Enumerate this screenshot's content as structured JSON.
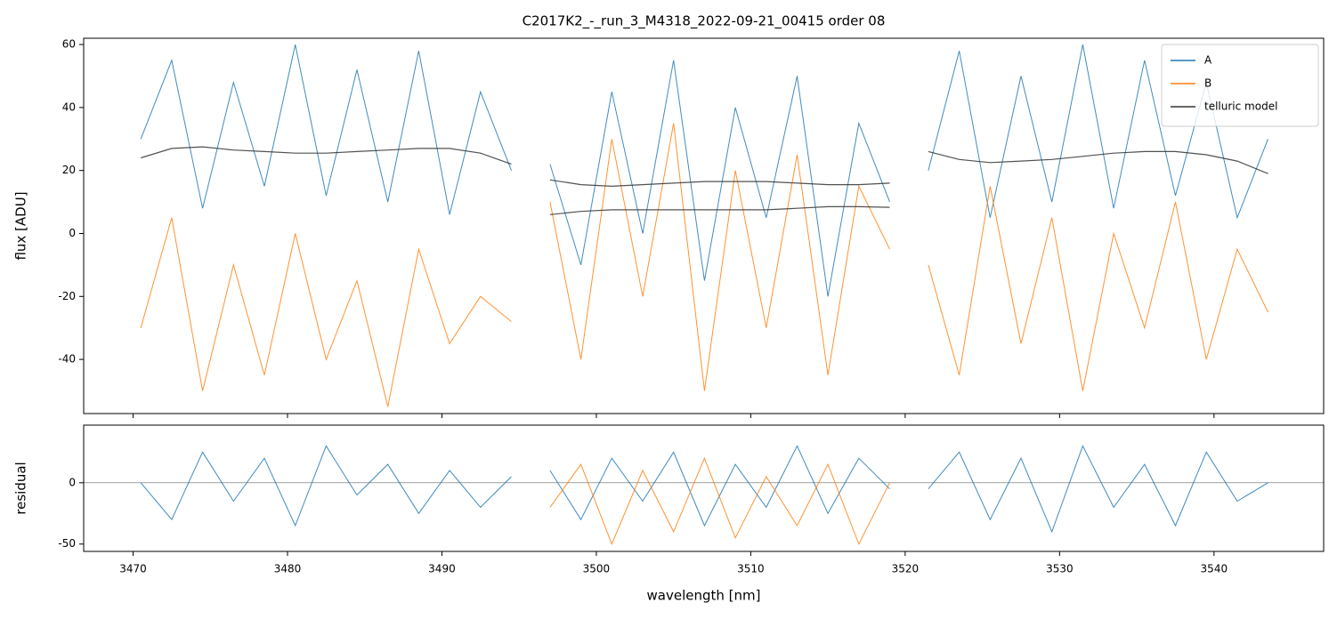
{
  "chart_data": [
    {
      "type": "line",
      "title": "C2017K2_-_run_3_M4318_2022-09-21_00415  order 08",
      "y_label": "flux [ADU]",
      "x": [
        3470.5,
        3472.5,
        3474.5,
        3476.5,
        3478.5,
        3480.5,
        3482.5,
        3484.5,
        3486.5,
        3488.5,
        3490.5,
        3492.5,
        3494.5,
        3495.6,
        3497,
        3499,
        3501,
        3503,
        3505,
        3507,
        3509,
        3511,
        3513,
        3515,
        3517,
        3519,
        3520.5,
        3521.5,
        3523.5,
        3525.5,
        3527.5,
        3529.5,
        3531.5,
        3533.5,
        3535.5,
        3537.5,
        3539.5,
        3541.5,
        3543.5
      ],
      "series": [
        {
          "name": "A",
          "color": "#1f77b4",
          "values": [
            30,
            55,
            8,
            48,
            15,
            60,
            12,
            52,
            10,
            58,
            6,
            45,
            20,
            null,
            22,
            -10,
            45,
            0,
            55,
            -15,
            40,
            5,
            50,
            -20,
            35,
            10,
            null,
            20,
            58,
            5,
            50,
            10,
            60,
            8,
            55,
            12,
            48,
            5,
            30
          ]
        },
        {
          "name": "B",
          "color": "#ff7f0e",
          "values": [
            -30,
            5,
            -50,
            -10,
            -45,
            0,
            -40,
            -15,
            -55,
            -5,
            -35,
            -20,
            -28,
            null,
            10,
            -40,
            30,
            -20,
            35,
            -50,
            20,
            -30,
            25,
            -45,
            15,
            -5,
            null,
            -10,
            -45,
            15,
            -35,
            5,
            -50,
            0,
            -30,
            10,
            -40,
            -5,
            -25
          ]
        },
        {
          "name": "telluric model",
          "color": "#333333",
          "values": [
            24,
            27,
            27.5,
            26.5,
            26,
            25.5,
            25.5,
            26,
            26.5,
            27,
            27,
            25.5,
            22,
            null,
            17,
            15.5,
            15,
            15.5,
            16,
            16.5,
            16.5,
            16.5,
            16,
            15.5,
            15.5,
            16,
            null,
            26,
            23.5,
            22.5,
            23,
            23.5,
            24.5,
            25.5,
            26,
            26,
            25,
            23,
            19
          ]
        },
        {
          "color": "#333333",
          "values": [
            null,
            null,
            null,
            null,
            null,
            null,
            null,
            null,
            null,
            null,
            null,
            null,
            null,
            null,
            6,
            7,
            7.5,
            7.5,
            7.5,
            7.5,
            7.5,
            7.5,
            8,
            8.5,
            8.5,
            8.3,
            null,
            null,
            null,
            null,
            null,
            null,
            null,
            null,
            null,
            null,
            null,
            null,
            null
          ]
        }
      ],
      "xlim": [
        3466.8,
        3547.1
      ],
      "xticks": [
        3470,
        3480,
        3490,
        3500,
        3510,
        3520,
        3530,
        3540
      ],
      "ylim": [
        -57.2,
        62
      ],
      "yticks": [
        -40,
        -20,
        0,
        20,
        40,
        60
      ],
      "legend": "upper right"
    },
    {
      "type": "line",
      "y_label": "residual",
      "x_label": "wavelength [nm]",
      "x": [
        3470.5,
        3472.5,
        3474.5,
        3476.5,
        3478.5,
        3480.5,
        3482.5,
        3484.5,
        3486.5,
        3488.5,
        3490.5,
        3492.5,
        3494.5,
        3495.6,
        3497,
        3499,
        3501,
        3503,
        3505,
        3507,
        3509,
        3511,
        3513,
        3515,
        3517,
        3519,
        3520.5,
        3521.5,
        3523.5,
        3525.5,
        3527.5,
        3529.5,
        3531.5,
        3533.5,
        3535.5,
        3537.5,
        3539.5,
        3541.5,
        3543.5
      ],
      "series": [
        {
          "color": "#1f77b4",
          "values": [
            0,
            -30,
            25,
            -15,
            20,
            -35,
            30,
            -10,
            15,
            -25,
            10,
            -20,
            5,
            null,
            10,
            -30,
            20,
            -15,
            25,
            -35,
            15,
            -20,
            30,
            -25,
            20,
            -5,
            null,
            -5,
            25,
            -30,
            20,
            -40,
            30,
            -20,
            15,
            -35,
            25,
            -15,
            0
          ]
        },
        {
          "color": "#ff7f0e",
          "values": [
            null,
            null,
            null,
            null,
            null,
            null,
            null,
            null,
            null,
            null,
            null,
            null,
            null,
            null,
            -20,
            15,
            -50,
            10,
            -40,
            20,
            -45,
            5,
            -35,
            15,
            -50,
            0,
            null,
            null,
            null,
            null,
            null,
            null,
            null,
            null,
            null,
            null,
            null,
            null,
            null
          ]
        }
      ],
      "hline": 0,
      "xlim": [
        3466.8,
        3547.1
      ],
      "xticks": [
        3470,
        3480,
        3490,
        3500,
        3510,
        3520,
        3530,
        3540
      ],
      "ylim": [
        -56,
        47
      ],
      "yticks": [
        -50,
        0
      ]
    }
  ]
}
